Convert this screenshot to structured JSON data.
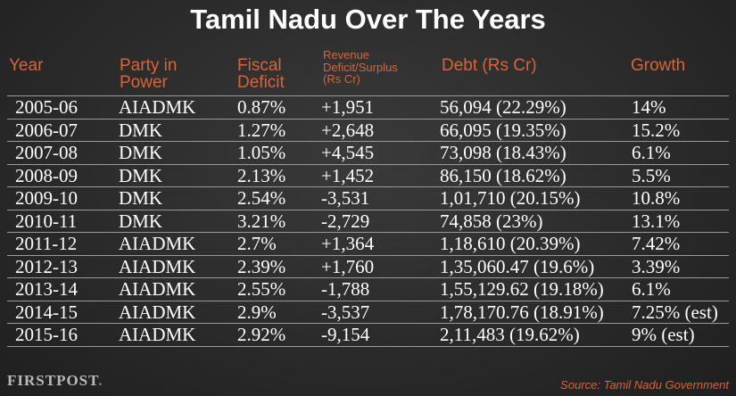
{
  "title": "Tamil Nadu Over The Years",
  "headers": {
    "year": "Year",
    "party_line1": "Party in",
    "party_line2": "Power",
    "fiscal_line1": "Fiscal",
    "fiscal_line2": "Deficit",
    "rev_line1": "Revenue",
    "rev_line2": "Deficit/Surplus",
    "rev_line3": "(Rs Cr)",
    "debt": "Debt (Rs Cr)",
    "growth": "Growth"
  },
  "chart_data": {
    "type": "table",
    "title": "Tamil Nadu Over The Years",
    "columns": [
      "Year",
      "Party in Power",
      "Fiscal Deficit",
      "Revenue Deficit/Surplus (Rs Cr)",
      "Debt (Rs Cr)",
      "Growth"
    ],
    "rows": [
      [
        "2005-06",
        "AIADMK",
        "0.87%",
        "+1,951",
        "56,094 (22.29%)",
        "14%"
      ],
      [
        "2006-07",
        "DMK",
        "1.27%",
        "+2,648",
        "66,095 (19.35%)",
        "15.2%"
      ],
      [
        "2007-08",
        "DMK",
        "1.05%",
        "+4,545",
        "73,098 (18.43%)",
        "6.1%"
      ],
      [
        "2008-09",
        "DMK",
        "2.13%",
        "+1,452",
        "86,150 (18.62%)",
        "5.5%"
      ],
      [
        "2009-10",
        "DMK",
        "2.54%",
        "-3,531",
        "1,01,710 (20.15%)",
        "10.8%"
      ],
      [
        "2010-11",
        "DMK",
        "3.21%",
        "-2,729",
        "74,858 (23%)",
        "13.1%"
      ],
      [
        "2011-12",
        "AIADMK",
        "2.7%",
        "+1,364",
        "1,18,610 (20.39%)",
        "7.42%"
      ],
      [
        "2012-13",
        "AIADMK",
        "2.39%",
        "+1,760",
        "1,35,060.47 (19.6%)",
        "3.39%"
      ],
      [
        "2013-14",
        "AIADMK",
        "2.55%",
        "-1,788",
        "1,55,129.62 (19.18%)",
        "6.1%"
      ],
      [
        "2014-15",
        "AIADMK",
        "2.9%",
        "-3,537",
        "1,78,170.76 (18.91%)",
        "7.25% (est)"
      ],
      [
        "2015-16",
        "AIADMK",
        "2.92%",
        "-9,154",
        "2,11,483 (19.62%)",
        "9% (est)"
      ]
    ]
  },
  "brand": "FIRSTPOST",
  "brand_dot": ".",
  "source": "Source: Tamil Nadu Government",
  "colors": {
    "accent": "#d9643a",
    "background": "#2a2a2a",
    "text": "#ffffff",
    "rule": "#9a9a9a"
  }
}
